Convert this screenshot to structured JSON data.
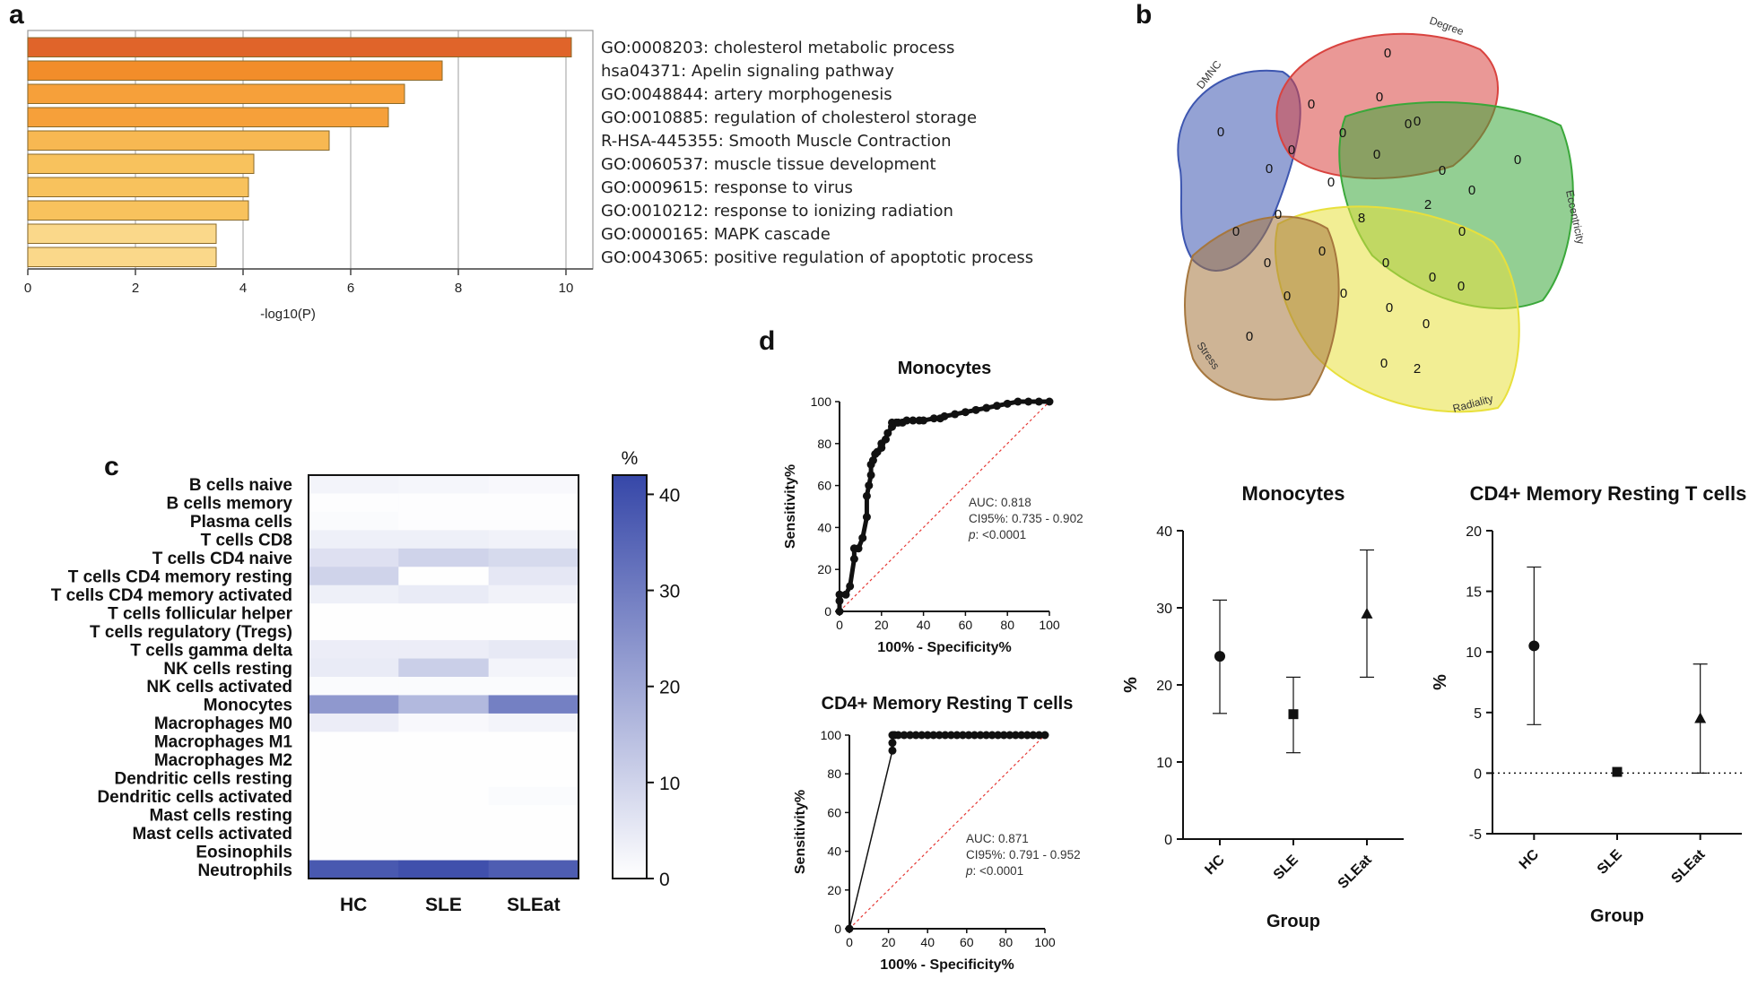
{
  "panels": {
    "a": "a",
    "b": "b",
    "c": "c",
    "d": "d"
  },
  "panel_a": {
    "chart_data": {
      "type": "bar",
      "orientation": "horizontal",
      "xlabel": "-log10(P)",
      "xlim": [
        0,
        10.5
      ],
      "xticks": [
        0,
        2,
        4,
        6,
        8,
        10
      ],
      "grid": true,
      "categories": [
        "GO:0008203: cholesterol metabolic process",
        "hsa04371: Apelin signaling pathway",
        "GO:0048844: artery morphogenesis",
        "GO:0010885: regulation of cholesterol storage",
        "R-HSA-445355: Smooth Muscle Contraction",
        "GO:0060537: muscle tissue development",
        "GO:0009615: response to virus",
        "GO:0010212: response to ionizing radiation",
        "GO:0000165: MAPK cascade",
        "GO:0043065: positive regulation of apoptotic process"
      ],
      "values": [
        10.1,
        7.7,
        7.0,
        6.7,
        5.6,
        4.2,
        4.1,
        4.1,
        3.5,
        3.5
      ],
      "colors": [
        "#e0642a",
        "#f28d2a",
        "#f6a03a",
        "#f6a03a",
        "#f7b852",
        "#f8c25d",
        "#f8c25d",
        "#f8c25d",
        "#fad88a",
        "#fad88a"
      ]
    }
  },
  "panel_b": {
    "sets": [
      {
        "name": "DMNC",
        "color": "#3d56b0"
      },
      {
        "name": "Degree",
        "color": "#d9433f"
      },
      {
        "name": "Eccentricity",
        "color": "#3aa83a"
      },
      {
        "name": "Radiality",
        "color": "#e8e03c"
      },
      {
        "name": "Stress",
        "color": "#a6773e"
      }
    ],
    "counts": [
      "0",
      "0",
      "0",
      "2",
      "0",
      "0",
      "0",
      "0",
      "0",
      "0",
      "0",
      "0",
      "0",
      "0",
      "0",
      "0",
      "0",
      "8",
      "2",
      "0",
      "0",
      "0",
      "0",
      "0",
      "0",
      "0",
      "0",
      "0",
      "0",
      "0",
      "0"
    ]
  },
  "panel_c": {
    "chart_data": {
      "type": "heatmap",
      "colorbar_label": "%",
      "colorbar_ticks": [
        0,
        10,
        20,
        30,
        40
      ],
      "vmin": 0,
      "vmax": 42,
      "columns": [
        "HC",
        "SLE",
        "SLEat"
      ],
      "rows": [
        "B cells naive",
        "B cells memory",
        "Plasma cells",
        "T cells CD8",
        "T cells CD4 naive",
        "T cells CD4 memory resting",
        "T cells CD4 memory activated",
        "T cells follicular helper",
        "T cells regulatory (Tregs)",
        "T cells gamma delta",
        "NK cells resting",
        "NK cells activated",
        "Monocytes",
        "Macrophages M0",
        "Macrophages M1",
        "Macrophages M2",
        "Dendritic cells resting",
        "Dendritic cells activated",
        "Mast cells resting",
        "Mast cells activated",
        "Eosinophils",
        "Neutrophils"
      ],
      "values": [
        [
          2.5,
          2.0,
          1.5
        ],
        [
          0.5,
          0.5,
          0.5
        ],
        [
          1.0,
          0.5,
          0.5
        ],
        [
          3.5,
          3.5,
          3.0
        ],
        [
          7.0,
          10.0,
          8.5
        ],
        [
          10.0,
          0.3,
          5.5
        ],
        [
          3.5,
          4.5,
          3.0
        ],
        [
          0.3,
          0.3,
          0.3
        ],
        [
          0.3,
          0.3,
          0.3
        ],
        [
          4.0,
          4.0,
          5.0
        ],
        [
          4.5,
          11.0,
          2.5
        ],
        [
          1.0,
          1.0,
          1.0
        ],
        [
          23.5,
          16.0,
          29.0
        ],
        [
          4.0,
          1.5,
          2.5
        ],
        [
          0.3,
          0.3,
          0.3
        ],
        [
          0.3,
          0.3,
          0.3
        ],
        [
          0.3,
          0.3,
          0.3
        ],
        [
          0.3,
          0.3,
          1.0
        ],
        [
          0.3,
          0.3,
          0.3
        ],
        [
          0.3,
          0.3,
          0.3
        ],
        [
          0.3,
          0.3,
          0.3
        ],
        [
          38.0,
          40.0,
          37.0
        ]
      ]
    }
  },
  "panel_d": {
    "chart_data": [
      {
        "type": "line",
        "title": "Monocytes",
        "xlabel": "100% - Specificity%",
        "ylabel": "Sensitivity%",
        "xlim": [
          0,
          100
        ],
        "ylim": [
          0,
          100
        ],
        "ticks": [
          0,
          20,
          40,
          60,
          80,
          100
        ],
        "x": [
          0,
          0,
          0,
          3,
          5,
          7,
          7,
          9,
          11,
          13,
          13,
          14,
          15,
          15,
          16,
          17,
          18,
          20,
          20,
          22,
          23,
          25,
          25,
          27,
          28,
          30,
          32,
          35,
          38,
          40,
          45,
          48,
          50,
          55,
          60,
          65,
          70,
          75,
          80,
          85,
          90,
          95,
          100
        ],
        "y": [
          0,
          5,
          8,
          8,
          12,
          25,
          30,
          30,
          35,
          45,
          55,
          60,
          65,
          70,
          72,
          75,
          76,
          78,
          80,
          82,
          85,
          88,
          90,
          90,
          90,
          90,
          91,
          91,
          91,
          91,
          92,
          92,
          93,
          94,
          95,
          96,
          97,
          98,
          99,
          100,
          100,
          100,
          100
        ],
        "stats": {
          "auc": "AUC: 0.818",
          "ci": "CI95%: 0.735 - 0.902",
          "p_label": "p",
          "p": ": <0.0001"
        }
      },
      {
        "type": "line",
        "title": "CD4+ Memory Resting T cells",
        "xlabel": "100% - Specificity%",
        "ylabel": "Sensitivity%",
        "xlim": [
          0,
          100
        ],
        "ylim": [
          0,
          100
        ],
        "ticks": [
          0,
          20,
          40,
          60,
          80,
          100
        ],
        "x": [
          0,
          22,
          22,
          22,
          23,
          23,
          25,
          28,
          31,
          34,
          37,
          40,
          43,
          46,
          49,
          52,
          55,
          58,
          61,
          64,
          67,
          70,
          73,
          76,
          79,
          82,
          85,
          88,
          91,
          94,
          97,
          100
        ],
        "y": [
          0,
          92,
          96,
          100,
          100,
          100,
          100,
          100,
          100,
          100,
          100,
          100,
          100,
          100,
          100,
          100,
          100,
          100,
          100,
          100,
          100,
          100,
          100,
          100,
          100,
          100,
          100,
          100,
          100,
          100,
          100,
          100
        ],
        "stats": {
          "auc": "AUC: 0.871",
          "ci": "CI95%: 0.791 - 0.952",
          "p_label": "p",
          "p": ": <0.0001"
        }
      },
      {
        "type": "scatter",
        "title": "Monocytes",
        "xlabel": "Group",
        "ylabel": "%",
        "ylim": [
          0,
          40
        ],
        "yticks": [
          0,
          10,
          20,
          30,
          40
        ],
        "categories": [
          "HC",
          "SLE",
          "SLEat"
        ],
        "markers": [
          "circle",
          "square",
          "triangle"
        ],
        "mean": [
          23.7,
          16.2,
          29.2
        ],
        "upper": [
          31.0,
          21.0,
          37.5
        ],
        "lower": [
          16.3,
          11.2,
          21.0
        ]
      },
      {
        "type": "scatter",
        "title": "CD4+ Memory Resting T cells",
        "xlabel": "Group",
        "ylabel": "%",
        "ylim": [
          -5,
          20
        ],
        "yticks": [
          -5,
          0,
          5,
          10,
          15,
          20
        ],
        "zero_line": true,
        "categories": [
          "HC",
          "SLE",
          "SLEat"
        ],
        "markers": [
          "circle",
          "square",
          "triangle"
        ],
        "mean": [
          10.5,
          0.1,
          4.5
        ],
        "upper": [
          17.0,
          0.1,
          9.0
        ],
        "lower": [
          4.0,
          0.1,
          0.0
        ]
      }
    ]
  }
}
